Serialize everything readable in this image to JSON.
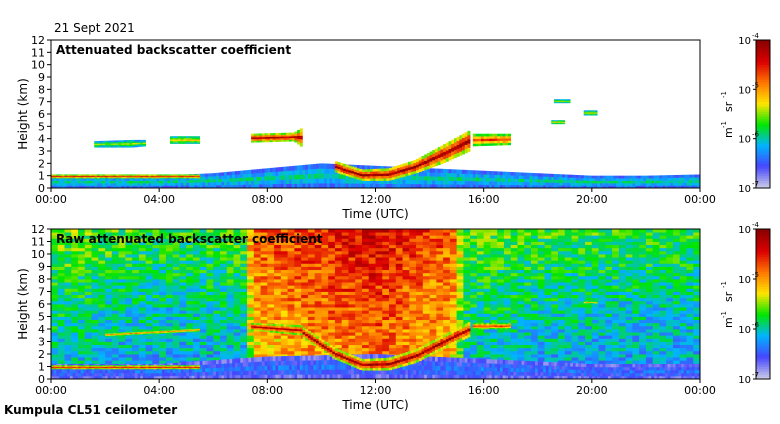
{
  "date_label": "21 Sept 2021",
  "footer_label": "Kumpula CL51 ceilometer",
  "colors": {
    "background": "#ffffff",
    "colormap": [
      "#c8c8e6",
      "#4646ff",
      "#00b4ff",
      "#00e600",
      "#ffe600",
      "#ff7800",
      "#dc0000",
      "#8c0000"
    ]
  },
  "chart_data": [
    {
      "type": "heatmap",
      "title": "Attenuated backscatter coefficient",
      "xlabel": "Time (UTC)",
      "ylabel": "Height (km)",
      "xlim": [
        0,
        24
      ],
      "ylim": [
        0,
        12
      ],
      "x_ticks": [
        "00:00",
        "04:00",
        "08:00",
        "12:00",
        "16:00",
        "20:00",
        "00:00"
      ],
      "y_ticks": [
        "0",
        "1",
        "2",
        "3",
        "4",
        "5",
        "6",
        "7",
        "8",
        "9",
        "10",
        "11",
        "12"
      ],
      "colorbar": {
        "scale": "log",
        "range": [
          1e-07,
          0.0001
        ],
        "labels": [
          "10",
          "10",
          "10",
          "10"
        ],
        "exponents": [
          "-7",
          "-6",
          "-5",
          "-4"
        ],
        "unit_base": [
          "m",
          "sr"
        ],
        "unit_exp": [
          "-1",
          "-1"
        ]
      },
      "layers": [
        {
          "name": "boundary layer",
          "t": [
            0,
            2,
            4,
            6,
            8,
            10,
            12,
            14,
            16,
            18,
            20,
            22,
            24
          ],
          "base_km": [
            0,
            0,
            0,
            0,
            0,
            0,
            0,
            0,
            0,
            0,
            0,
            0,
            0
          ],
          "top_km": [
            1.0,
            1.0,
            1.0,
            1.2,
            1.6,
            2.0,
            1.8,
            1.6,
            1.4,
            1.2,
            1.0,
            1.0,
            1.1
          ],
          "level": 0.35
        },
        {
          "name": "residual layer top",
          "t": [
            0,
            2,
            4,
            5.5
          ],
          "base_km": [
            0.8,
            0.8,
            0.8,
            0.8
          ],
          "top_km": [
            1.1,
            1.1,
            1.1,
            1.1
          ],
          "level": 0.85
        },
        {
          "name": "cloud 1",
          "t": [
            1.6,
            3.0,
            3.5
          ],
          "base_km": [
            3.3,
            3.3,
            3.4
          ],
          "top_km": [
            3.8,
            3.9,
            3.9
          ],
          "level": 0.5
        },
        {
          "name": "cloud 2",
          "t": [
            4.4,
            5.5
          ],
          "base_km": [
            3.6,
            3.6
          ],
          "top_km": [
            4.2,
            4.2
          ],
          "level": 0.6
        },
        {
          "name": "cloud 3",
          "t": [
            7.4,
            9.0,
            9.3
          ],
          "base_km": [
            3.7,
            3.8,
            3.3
          ],
          "top_km": [
            4.4,
            4.5,
            4.9
          ],
          "level": 0.9
        },
        {
          "name": "descending cloud",
          "t": [
            10.5,
            11.5,
            12.5,
            13.5,
            14.5,
            15.5
          ],
          "base_km": [
            1.3,
            0.6,
            0.6,
            1.2,
            2.0,
            3.0
          ],
          "top_km": [
            2.2,
            1.5,
            1.6,
            2.3,
            3.5,
            4.7
          ],
          "level": 0.95
        },
        {
          "name": "cloud 4",
          "t": [
            15.6,
            17.0
          ],
          "base_km": [
            3.4,
            3.5
          ],
          "top_km": [
            4.4,
            4.4
          ],
          "level": 0.8
        },
        {
          "name": "cloud 5",
          "t": [
            18.5,
            19.0
          ],
          "base_km": [
            5.2,
            5.2
          ],
          "top_km": [
            5.5,
            5.5
          ],
          "level": 0.6
        },
        {
          "name": "cloud 6",
          "t": [
            18.6,
            19.2
          ],
          "base_km": [
            6.9,
            6.9
          ],
          "top_km": [
            7.2,
            7.2
          ],
          "level": 0.5
        },
        {
          "name": "cloud 7",
          "t": [
            19.7,
            20.2
          ],
          "base_km": [
            5.9,
            5.9
          ],
          "top_km": [
            6.3,
            6.3
          ],
          "level": 0.55
        }
      ]
    },
    {
      "type": "heatmap",
      "title": "Raw attenuated backscatter coefficient",
      "xlabel": "Time (UTC)",
      "ylabel": "Height (km)",
      "xlim": [
        0,
        24
      ],
      "ylim": [
        0,
        12
      ],
      "x_ticks": [
        "00:00",
        "04:00",
        "08:00",
        "12:00",
        "16:00",
        "20:00",
        "00:00"
      ],
      "y_ticks": [
        "0",
        "1",
        "2",
        "3",
        "4",
        "5",
        "6",
        "7",
        "8",
        "9",
        "10",
        "11",
        "12"
      ],
      "colorbar": {
        "scale": "log",
        "range": [
          1e-07,
          0.0001
        ],
        "labels": [
          "10",
          "10",
          "10",
          "10"
        ],
        "exponents": [
          "-7",
          "-6",
          "-5",
          "-4"
        ],
        "unit_base": [
          "m",
          "sr"
        ],
        "unit_exp": [
          "-1",
          "-1"
        ]
      },
      "noise_field": {
        "t": [
          0,
          4,
          7.3,
          7.4,
          12,
          15,
          15.2,
          20,
          24
        ],
        "level": [
          0.35,
          0.3,
          0.32,
          0.62,
          0.75,
          0.62,
          0.34,
          0.3,
          0.3
        ]
      },
      "layers": [
        {
          "name": "boundary layer",
          "t": [
            0,
            4,
            8,
            12,
            16,
            20,
            24
          ],
          "base_km": [
            0,
            0,
            0,
            0,
            0,
            0,
            0
          ],
          "top_km": [
            1.2,
            1.2,
            1.8,
            2.0,
            1.6,
            1.2,
            1.2
          ],
          "level": 0.2
        },
        {
          "name": "residual layer top",
          "t": [
            0,
            2,
            4,
            5.5
          ],
          "base_km": [
            0.8,
            0.8,
            0.8,
            0.8
          ],
          "top_km": [
            1.1,
            1.1,
            1.1,
            1.1
          ],
          "level": 0.85
        },
        {
          "name": "cloud 1",
          "t": [
            2.0,
            5.5
          ],
          "base_km": [
            3.4,
            3.8
          ],
          "top_km": [
            3.7,
            4.1
          ],
          "level": 0.7
        },
        {
          "name": "cloud 3",
          "t": [
            7.4,
            9.3
          ],
          "base_km": [
            3.9,
            3.5
          ],
          "top_km": [
            4.5,
            4.3
          ],
          "level": 0.9
        },
        {
          "name": "descending cloud",
          "t": [
            9.3,
            10.5,
            11.5,
            12.5,
            13.5,
            14.5,
            15.5
          ],
          "base_km": [
            3.3,
            1.6,
            0.7,
            0.7,
            1.3,
            2.4,
            3.4
          ],
          "top_km": [
            4.2,
            2.5,
            1.6,
            1.7,
            2.4,
            3.5,
            4.6
          ],
          "level": 0.95
        },
        {
          "name": "cloud 4",
          "t": [
            15.6,
            17.0
          ],
          "base_km": [
            4.0,
            4.0
          ],
          "top_km": [
            4.5,
            4.5
          ],
          "level": 0.8
        },
        {
          "name": "cloud 7",
          "t": [
            19.7,
            20.2
          ],
          "base_km": [
            6.0,
            6.0
          ],
          "top_km": [
            6.3,
            6.3
          ],
          "level": 0.6
        }
      ]
    }
  ]
}
